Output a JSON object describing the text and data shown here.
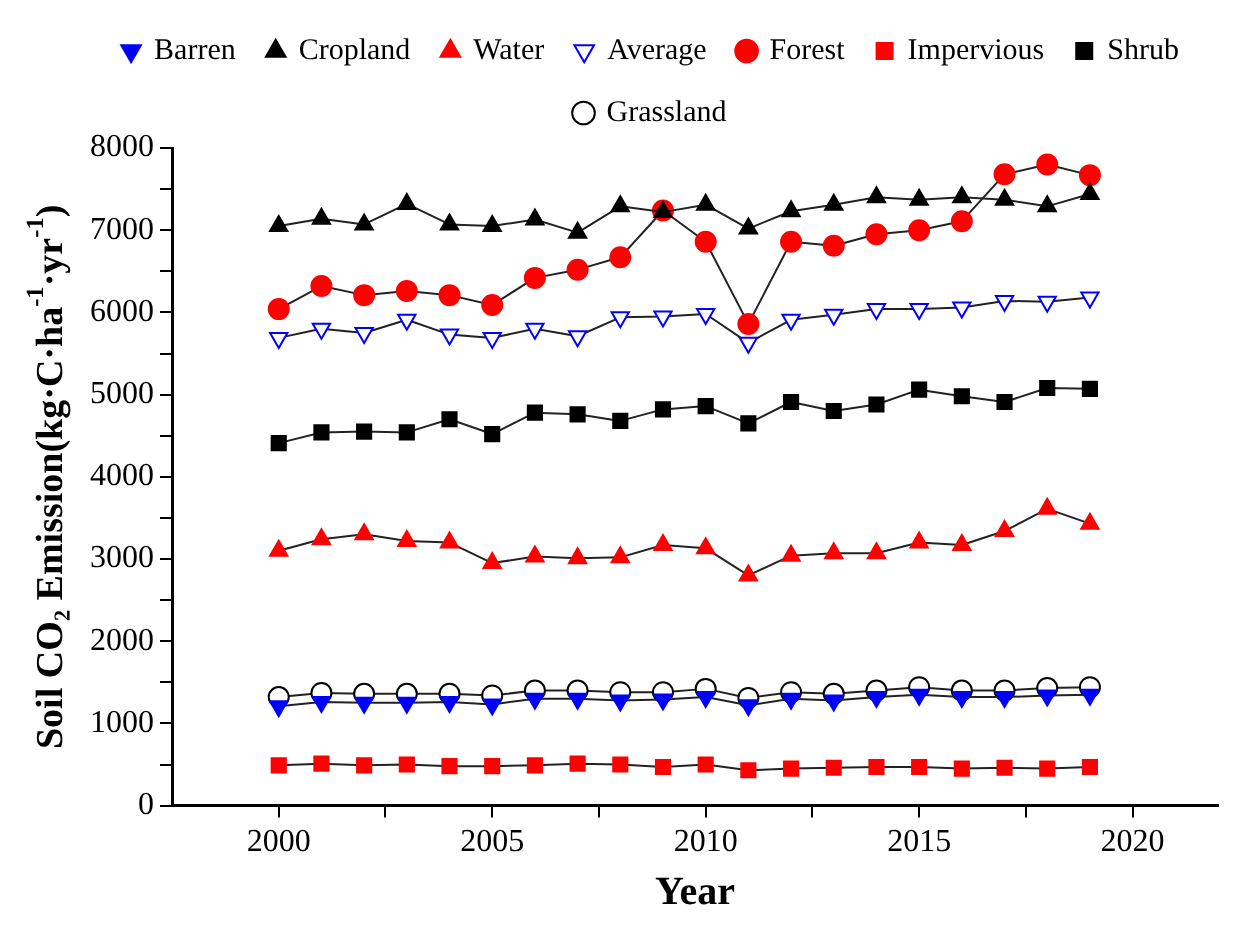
{
  "chart_data": {
    "type": "line",
    "xlabel": "Year",
    "ylabel": "Soil CO₂ Emission(kg·C·ha$^{-1}$·yr$^{-1}$)",
    "x": [
      2000,
      2001,
      2002,
      2003,
      2004,
      2005,
      2006,
      2007,
      2008,
      2009,
      2010,
      2011,
      2012,
      2013,
      2014,
      2015,
      2016,
      2017,
      2018,
      2019
    ],
    "xlim": [
      1997.5,
      2022
    ],
    "xticks": [
      2000,
      {
        "value": 2002.5,
        "label": null
      },
      2005,
      {
        "value": 2007.5,
        "label": null
      },
      2010,
      {
        "value": 2012.5,
        "label": null
      },
      2015,
      {
        "value": 2017.5,
        "label": null
      },
      2020
    ],
    "ylim": [
      0,
      8000
    ],
    "yticks": [
      0,
      {
        "value": 500,
        "label": null
      },
      1000,
      {
        "value": 1500,
        "label": null
      },
      2000,
      {
        "value": 2500,
        "label": null
      },
      3000,
      {
        "value": 3500,
        "label": null
      },
      4000,
      {
        "value": 4500,
        "label": null
      },
      5000,
      {
        "value": 5500,
        "label": null
      },
      6000,
      {
        "value": 6500,
        "label": null
      },
      7000,
      {
        "value": 7500,
        "label": null
      },
      8000
    ],
    "grid": false,
    "legend": "top",
    "line_style": "solid",
    "series": [
      {
        "name": "Barren",
        "color": "#0000ff",
        "marker": "triangle-down",
        "values": [
          1210,
          1260,
          1250,
          1250,
          1260,
          1230,
          1300,
          1300,
          1280,
          1290,
          1320,
          1220,
          1300,
          1280,
          1320,
          1350,
          1320,
          1320,
          1340,
          1350
        ]
      },
      {
        "name": "Forest",
        "color": "#ff0000",
        "marker": "circle",
        "values": [
          6040,
          6320,
          6210,
          6260,
          6210,
          6090,
          6420,
          6520,
          6670,
          7240,
          6860,
          5860,
          6860,
          6810,
          6950,
          7000,
          7110,
          7680,
          7800,
          7670
        ]
      },
      {
        "name": "Impervious",
        "color": "#ff0000",
        "marker": "square",
        "values": [
          490,
          510,
          490,
          500,
          480,
          480,
          490,
          510,
          500,
          470,
          500,
          430,
          450,
          460,
          470,
          470,
          450,
          460,
          450,
          470
        ]
      },
      {
        "name": "Shrub",
        "color": "#000000",
        "marker": "square",
        "values": [
          4410,
          4540,
          4550,
          4540,
          4700,
          4520,
          4780,
          4760,
          4680,
          4820,
          4860,
          4650,
          4910,
          4800,
          4880,
          5060,
          4980,
          4910,
          5080,
          5070
        ]
      },
      {
        "name": "Cropland",
        "color": "#000000",
        "marker": "triangle",
        "values": [
          7050,
          7140,
          7070,
          7320,
          7070,
          7050,
          7130,
          6970,
          7290,
          7220,
          7310,
          7020,
          7230,
          7310,
          7400,
          7370,
          7400,
          7370,
          7290,
          7440
        ]
      },
      {
        "name": "Water",
        "color": "#ff0000",
        "marker": "triangle",
        "values": [
          3100,
          3240,
          3300,
          3220,
          3200,
          2950,
          3030,
          3010,
          3020,
          3170,
          3130,
          2800,
          3040,
          3070,
          3070,
          3200,
          3170,
          3340,
          3610,
          3430
        ]
      },
      {
        "name": "Grassland",
        "color": "#000000",
        "marker": "circle-open",
        "values": [
          1320,
          1370,
          1360,
          1360,
          1360,
          1340,
          1400,
          1400,
          1380,
          1380,
          1420,
          1310,
          1380,
          1360,
          1400,
          1440,
          1400,
          1400,
          1430,
          1440
        ]
      },
      {
        "name": "Average",
        "color": "#0000ff",
        "marker": "triangle-down-open",
        "values": [
          5690,
          5800,
          5750,
          5910,
          5730,
          5690,
          5800,
          5710,
          5940,
          5950,
          5980,
          5630,
          5910,
          5970,
          6040,
          6040,
          6060,
          6140,
          6130,
          6180
        ]
      }
    ]
  }
}
